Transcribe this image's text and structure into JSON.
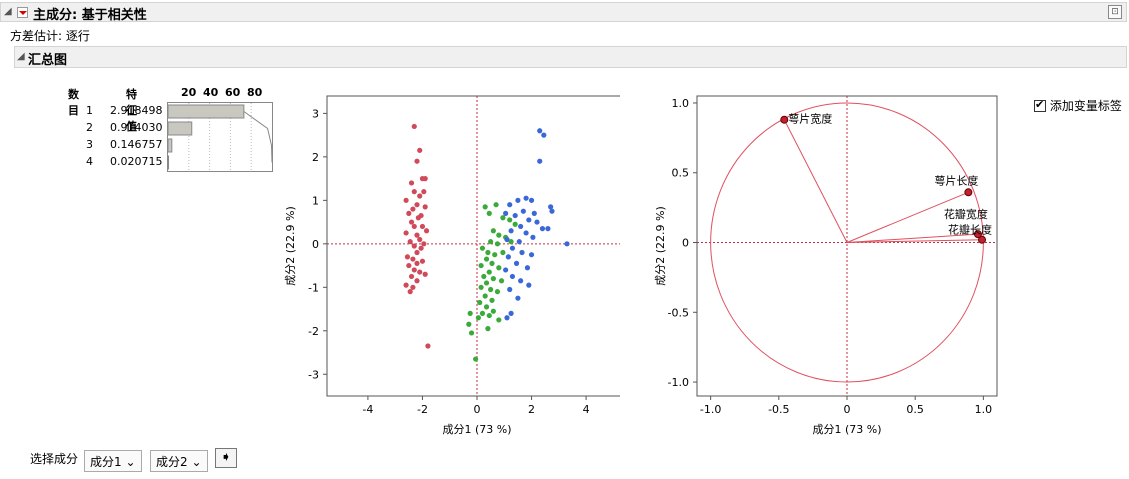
{
  "header": {
    "title": "主成分: 基于相关性"
  },
  "variance_estimate": "方差估计: 逐行",
  "summary": {
    "title": "汇总图"
  },
  "eigen_table": {
    "col_number": "数目",
    "col_eigen": "特征值",
    "scale_labels": [
      "20",
      "40",
      "60",
      "80"
    ],
    "rows": [
      {
        "n": "1",
        "value": "2.918498",
        "pct": 72.96
      },
      {
        "n": "2",
        "value": "0.914030",
        "pct": 22.85
      },
      {
        "n": "3",
        "value": "0.146757",
        "pct": 3.67
      },
      {
        "n": "4",
        "value": "0.020715",
        "pct": 0.52
      }
    ]
  },
  "checkbox": {
    "label": "添加变量标签",
    "checked": true
  },
  "bottom": {
    "select_label": "选择成分",
    "comp1": "成分1",
    "comp2": "成分2"
  },
  "colors": {
    "red": "#d04a5a",
    "green": "#3aaa3a",
    "blue": "#3a68d8",
    "circle": "#e05060"
  },
  "chart_data": [
    {
      "type": "scatter",
      "title": "",
      "xlabel": "成分1  (73 %)",
      "ylabel": "成分2  (22.9 %)",
      "xlim": [
        -5.5,
        5.5
      ],
      "ylim": [
        -3.5,
        3.4
      ],
      "xticks": [
        -4,
        -2,
        0,
        2,
        4
      ],
      "yticks": [
        -3,
        -2,
        -1,
        0,
        1,
        2,
        3
      ],
      "series": [
        {
          "color": "red",
          "points": [
            [
              -2.3,
              2.7
            ],
            [
              -2.1,
              2.15
            ],
            [
              -2.2,
              1.9
            ],
            [
              -2.0,
              1.5
            ],
            [
              -1.9,
              1.5
            ],
            [
              -2.4,
              1.4
            ],
            [
              -2.3,
              1.2
            ],
            [
              -1.95,
              1.2
            ],
            [
              -2.1,
              1.1
            ],
            [
              -2.6,
              1.0
            ],
            [
              -2.2,
              0.9
            ],
            [
              -1.9,
              0.85
            ],
            [
              -2.35,
              0.8
            ],
            [
              -2.5,
              0.7
            ],
            [
              -2.05,
              0.65
            ],
            [
              -2.15,
              0.6
            ],
            [
              -2.4,
              0.5
            ],
            [
              -2.3,
              0.4
            ],
            [
              -2.0,
              0.4
            ],
            [
              -1.85,
              0.3
            ],
            [
              -2.6,
              0.25
            ],
            [
              -2.2,
              0.2
            ],
            [
              -2.1,
              0.1
            ],
            [
              -2.45,
              0.05
            ],
            [
              -1.95,
              0.0
            ],
            [
              -2.3,
              -0.05
            ],
            [
              -2.05,
              -0.1
            ],
            [
              -2.2,
              -0.2
            ],
            [
              -2.55,
              -0.3
            ],
            [
              -2.35,
              -0.35
            ],
            [
              -2.0,
              -0.4
            ],
            [
              -2.2,
              -0.45
            ],
            [
              -2.5,
              -0.5
            ],
            [
              -2.3,
              -0.6
            ],
            [
              -2.1,
              -0.65
            ],
            [
              -1.9,
              -0.7
            ],
            [
              -2.4,
              -0.75
            ],
            [
              -2.2,
              -0.85
            ],
            [
              -2.6,
              -0.95
            ],
            [
              -2.35,
              -1.0
            ],
            [
              -2.45,
              -1.1
            ],
            [
              -1.8,
              -2.35
            ]
          ]
        },
        {
          "color": "green",
          "points": [
            [
              0.3,
              0.85
            ],
            [
              0.7,
              0.9
            ],
            [
              0.45,
              0.7
            ],
            [
              0.95,
              0.6
            ],
            [
              1.2,
              0.55
            ],
            [
              1.4,
              0.45
            ],
            [
              0.6,
              0.3
            ],
            [
              0.8,
              0.2
            ],
            [
              1.05,
              0.15
            ],
            [
              0.5,
              0.05
            ],
            [
              0.75,
              0.0
            ],
            [
              1.25,
              0.05
            ],
            [
              0.2,
              -0.1
            ],
            [
              0.4,
              -0.2
            ],
            [
              0.65,
              -0.25
            ],
            [
              0.95,
              -0.2
            ],
            [
              0.35,
              -0.35
            ],
            [
              0.55,
              -0.45
            ],
            [
              0.15,
              -0.5
            ],
            [
              0.8,
              -0.55
            ],
            [
              0.45,
              -0.65
            ],
            [
              0.25,
              -0.75
            ],
            [
              0.6,
              -0.8
            ],
            [
              0.9,
              -0.85
            ],
            [
              0.35,
              -0.9
            ],
            [
              0.15,
              -1.0
            ],
            [
              0.5,
              -1.05
            ],
            [
              0.75,
              -1.1
            ],
            [
              0.3,
              -1.2
            ],
            [
              0.55,
              -1.3
            ],
            [
              0.1,
              -1.35
            ],
            [
              0.35,
              -1.45
            ],
            [
              0.6,
              -1.55
            ],
            [
              0.2,
              -1.6
            ],
            [
              0.45,
              -1.65
            ],
            [
              0.05,
              -1.7
            ],
            [
              0.8,
              -1.75
            ],
            [
              -0.25,
              -1.6
            ],
            [
              -0.3,
              -1.85
            ],
            [
              0.4,
              -1.95
            ],
            [
              -0.2,
              -2.05
            ],
            [
              -0.05,
              -2.65
            ]
          ]
        },
        {
          "color": "blue",
          "points": [
            [
              2.3,
              2.6
            ],
            [
              2.45,
              2.5
            ],
            [
              2.3,
              1.9
            ],
            [
              1.8,
              1.05
            ],
            [
              1.5,
              1.0
            ],
            [
              2.0,
              1.0
            ],
            [
              1.2,
              0.9
            ],
            [
              1.7,
              0.75
            ],
            [
              2.1,
              0.7
            ],
            [
              2.7,
              0.85
            ],
            [
              2.75,
              0.75
            ],
            [
              1.05,
              0.7
            ],
            [
              1.4,
              0.65
            ],
            [
              1.9,
              0.55
            ],
            [
              2.2,
              0.5
            ],
            [
              1.6,
              0.4
            ],
            [
              2.4,
              0.35
            ],
            [
              2.6,
              0.35
            ],
            [
              1.25,
              0.3
            ],
            [
              1.8,
              0.25
            ],
            [
              3.3,
              0.0
            ],
            [
              1.1,
              0.1
            ],
            [
              1.55,
              0.05
            ],
            [
              2.05,
              0.15
            ],
            [
              1.3,
              -0.1
            ],
            [
              1.65,
              -0.2
            ],
            [
              2.0,
              -0.25
            ],
            [
              1.15,
              -0.3
            ],
            [
              1.45,
              -0.45
            ],
            [
              1.85,
              -0.55
            ],
            [
              1.05,
              -0.6
            ],
            [
              1.3,
              -0.75
            ],
            [
              1.6,
              -0.85
            ],
            [
              1.9,
              -0.95
            ],
            [
              1.2,
              -1.05
            ],
            [
              1.5,
              -1.25
            ],
            [
              1.25,
              -1.6
            ],
            [
              1.1,
              -1.7
            ]
          ]
        }
      ]
    },
    {
      "type": "scatter",
      "title": "",
      "xlabel": "成分1  (73 %)",
      "ylabel": "成分2  (22.9 %)",
      "xlim": [
        -1.1,
        1.1
      ],
      "ylim": [
        -1.1,
        1.05
      ],
      "xticks": [
        -1.0,
        -0.5,
        0,
        0.5,
        1.0
      ],
      "xticklabels": [
        "-1.0",
        "-0.5",
        "0",
        "0.5",
        "1.0"
      ],
      "yticks": [
        -1.0,
        -0.5,
        0,
        0.5,
        1.0
      ],
      "yticklabels": [
        "-1.0",
        "-0.5",
        "0",
        "0.5",
        "1.0"
      ],
      "vectors": [
        {
          "label": "萼片宽度",
          "x": -0.46,
          "y": 0.88
        },
        {
          "label": "萼片长度",
          "x": 0.89,
          "y": 0.36
        },
        {
          "label": "花瓣宽度",
          "x": 0.96,
          "y": 0.06
        },
        {
          "label": "花瓣长度",
          "x": 0.99,
          "y": 0.02
        }
      ]
    }
  ]
}
